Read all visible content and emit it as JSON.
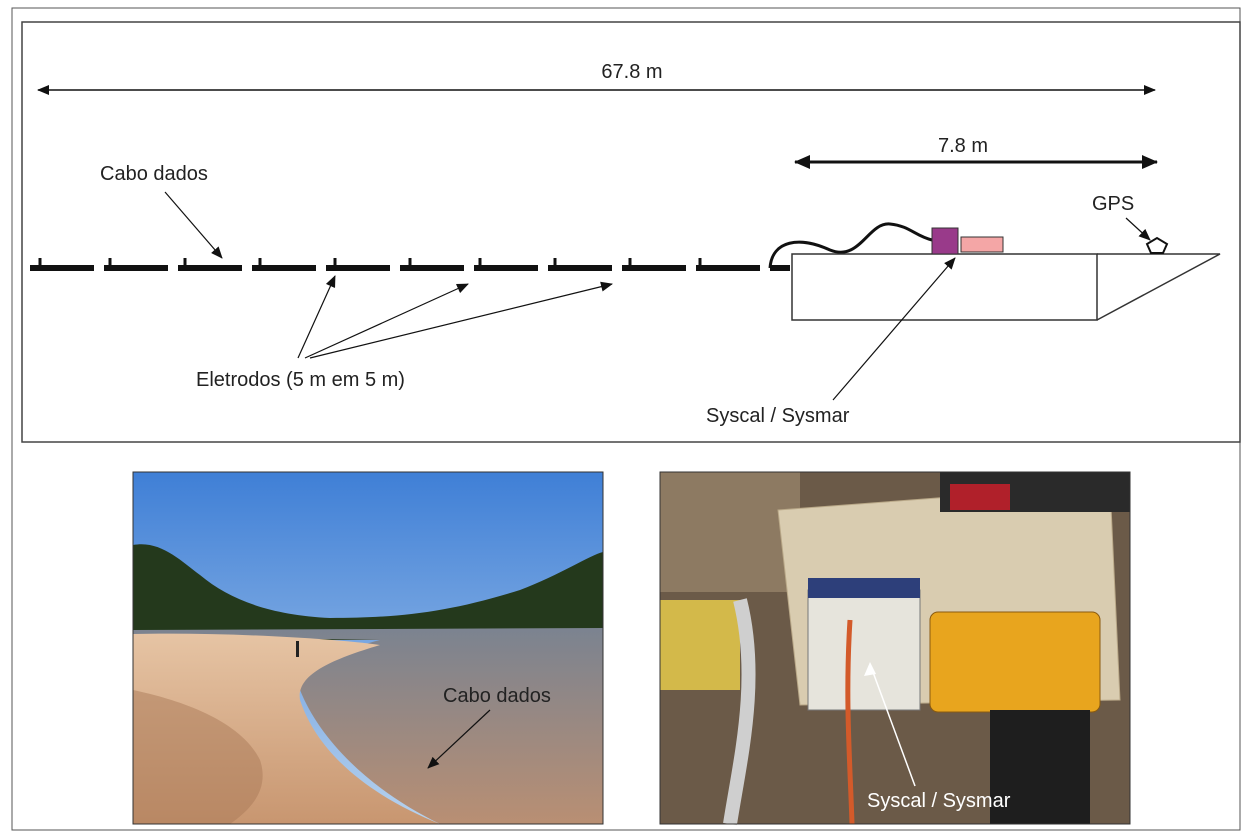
{
  "diagram": {
    "total_length": "67.8 m",
    "boat_length": "7.8 m",
    "cable_label": "Cabo dados",
    "gps_label": "GPS",
    "electrodes_label": "Eletrodos (5 m em 5 m)",
    "instrument_label": "Syscal / Sysmar"
  },
  "photos": [
    {
      "label": "Cabo dados"
    },
    {
      "label": "Syscal / Sysmar"
    }
  ]
}
